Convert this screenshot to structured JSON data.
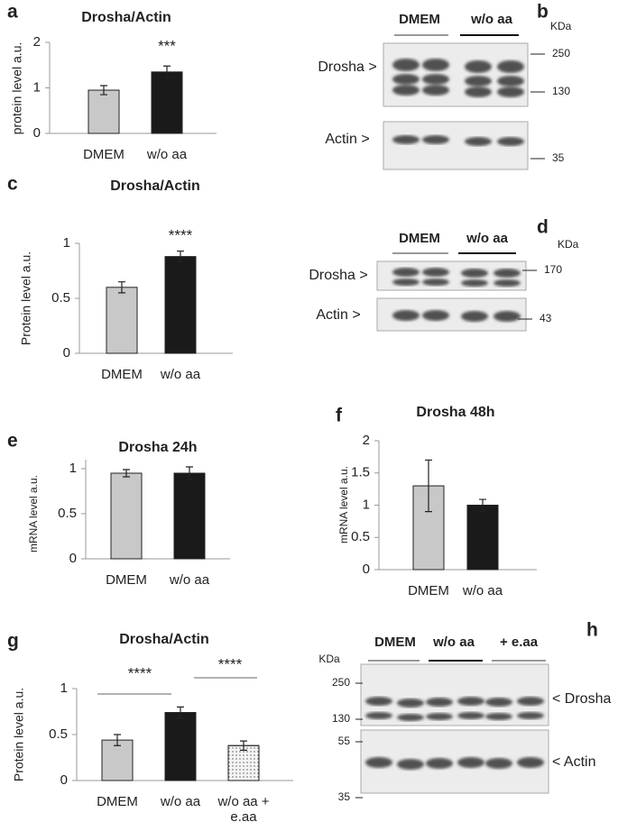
{
  "chart_data": [
    {
      "type": "bar",
      "label": "a",
      "title": "Drosha/Actin",
      "ylabel": "protein level  a.u.",
      "categories": [
        "DMEM",
        "w/o aa"
      ],
      "values": [
        0.95,
        1.35
      ],
      "errors": [
        0.1,
        0.13
      ],
      "colors": [
        "#c8c8c8",
        "#1a1a1a"
      ],
      "ylim": [
        0,
        2
      ],
      "yticks": [
        0,
        1,
        2
      ],
      "annotations": [
        "***"
      ]
    },
    {
      "type": "bar",
      "label": "c",
      "title": "Drosha/Actin",
      "ylabel": "Protein level a.u.",
      "categories": [
        "DMEM",
        "w/o aa"
      ],
      "values": [
        0.6,
        0.88
      ],
      "errors": [
        0.05,
        0.05
      ],
      "colors": [
        "#c8c8c8",
        "#1a1a1a"
      ],
      "ylim": [
        0,
        1
      ],
      "yticks": [
        0,
        0.5,
        1
      ],
      "annotations": [
        "****"
      ]
    },
    {
      "type": "bar",
      "label": "e",
      "title": "Drosha 24h",
      "ylabel": "mRNA level a.u.",
      "categories": [
        "DMEM",
        "w/o aa"
      ],
      "values": [
        0.95,
        0.95
      ],
      "errors": [
        0.04,
        0.07
      ],
      "colors": [
        "#c8c8c8",
        "#1a1a1a"
      ],
      "ylim": [
        0,
        1.1
      ],
      "yticks": [
        0,
        0.5,
        1
      ],
      "annotations": []
    },
    {
      "type": "bar",
      "label": "f",
      "title": "Drosha 48h",
      "ylabel": "mRNA level a.u.",
      "categories": [
        "DMEM",
        "w/o aa"
      ],
      "values": [
        1.3,
        1.0
      ],
      "errors": [
        0.4,
        0.09
      ],
      "colors": [
        "#c8c8c8",
        "#1a1a1a"
      ],
      "ylim": [
        0,
        2
      ],
      "yticks": [
        0,
        0.5,
        1,
        1.5,
        2
      ],
      "annotations": []
    },
    {
      "type": "bar",
      "label": "g",
      "title": "Drosha/Actin",
      "ylabel": "Protein level a.u.",
      "categories": [
        "DMEM",
        "w/o aa",
        "w/o aa + e.aa"
      ],
      "values": [
        0.44,
        0.74,
        0.38
      ],
      "errors": [
        0.06,
        0.06,
        0.05
      ],
      "colors": [
        "#c8c8c8",
        "#1a1a1a",
        "#f4f4f4"
      ],
      "dotted": [
        false,
        false,
        true
      ],
      "ylim": [
        0,
        1
      ],
      "yticks": [
        0,
        0.5,
        1
      ],
      "annotations": [
        "****",
        "****"
      ]
    }
  ],
  "blots": [
    {
      "label": "b",
      "groups": [
        "DMEM",
        "w/o aa"
      ],
      "unit": "KDa",
      "markers": [
        250,
        130,
        35
      ],
      "bands": [
        "Drosha >",
        "Actin >"
      ]
    },
    {
      "label": "d",
      "groups": [
        "DMEM",
        "w/o aa"
      ],
      "unit": "KDa",
      "markers": [
        170,
        43
      ],
      "bands": [
        "Drosha >",
        "Actin >"
      ]
    },
    {
      "label": "h",
      "groups": [
        "DMEM",
        "w/o aa",
        "+ e.aa"
      ],
      "unit": "KDa",
      "markers": [
        250,
        130,
        55,
        35
      ],
      "bands": [
        "< Drosha",
        "< Actin"
      ]
    }
  ]
}
